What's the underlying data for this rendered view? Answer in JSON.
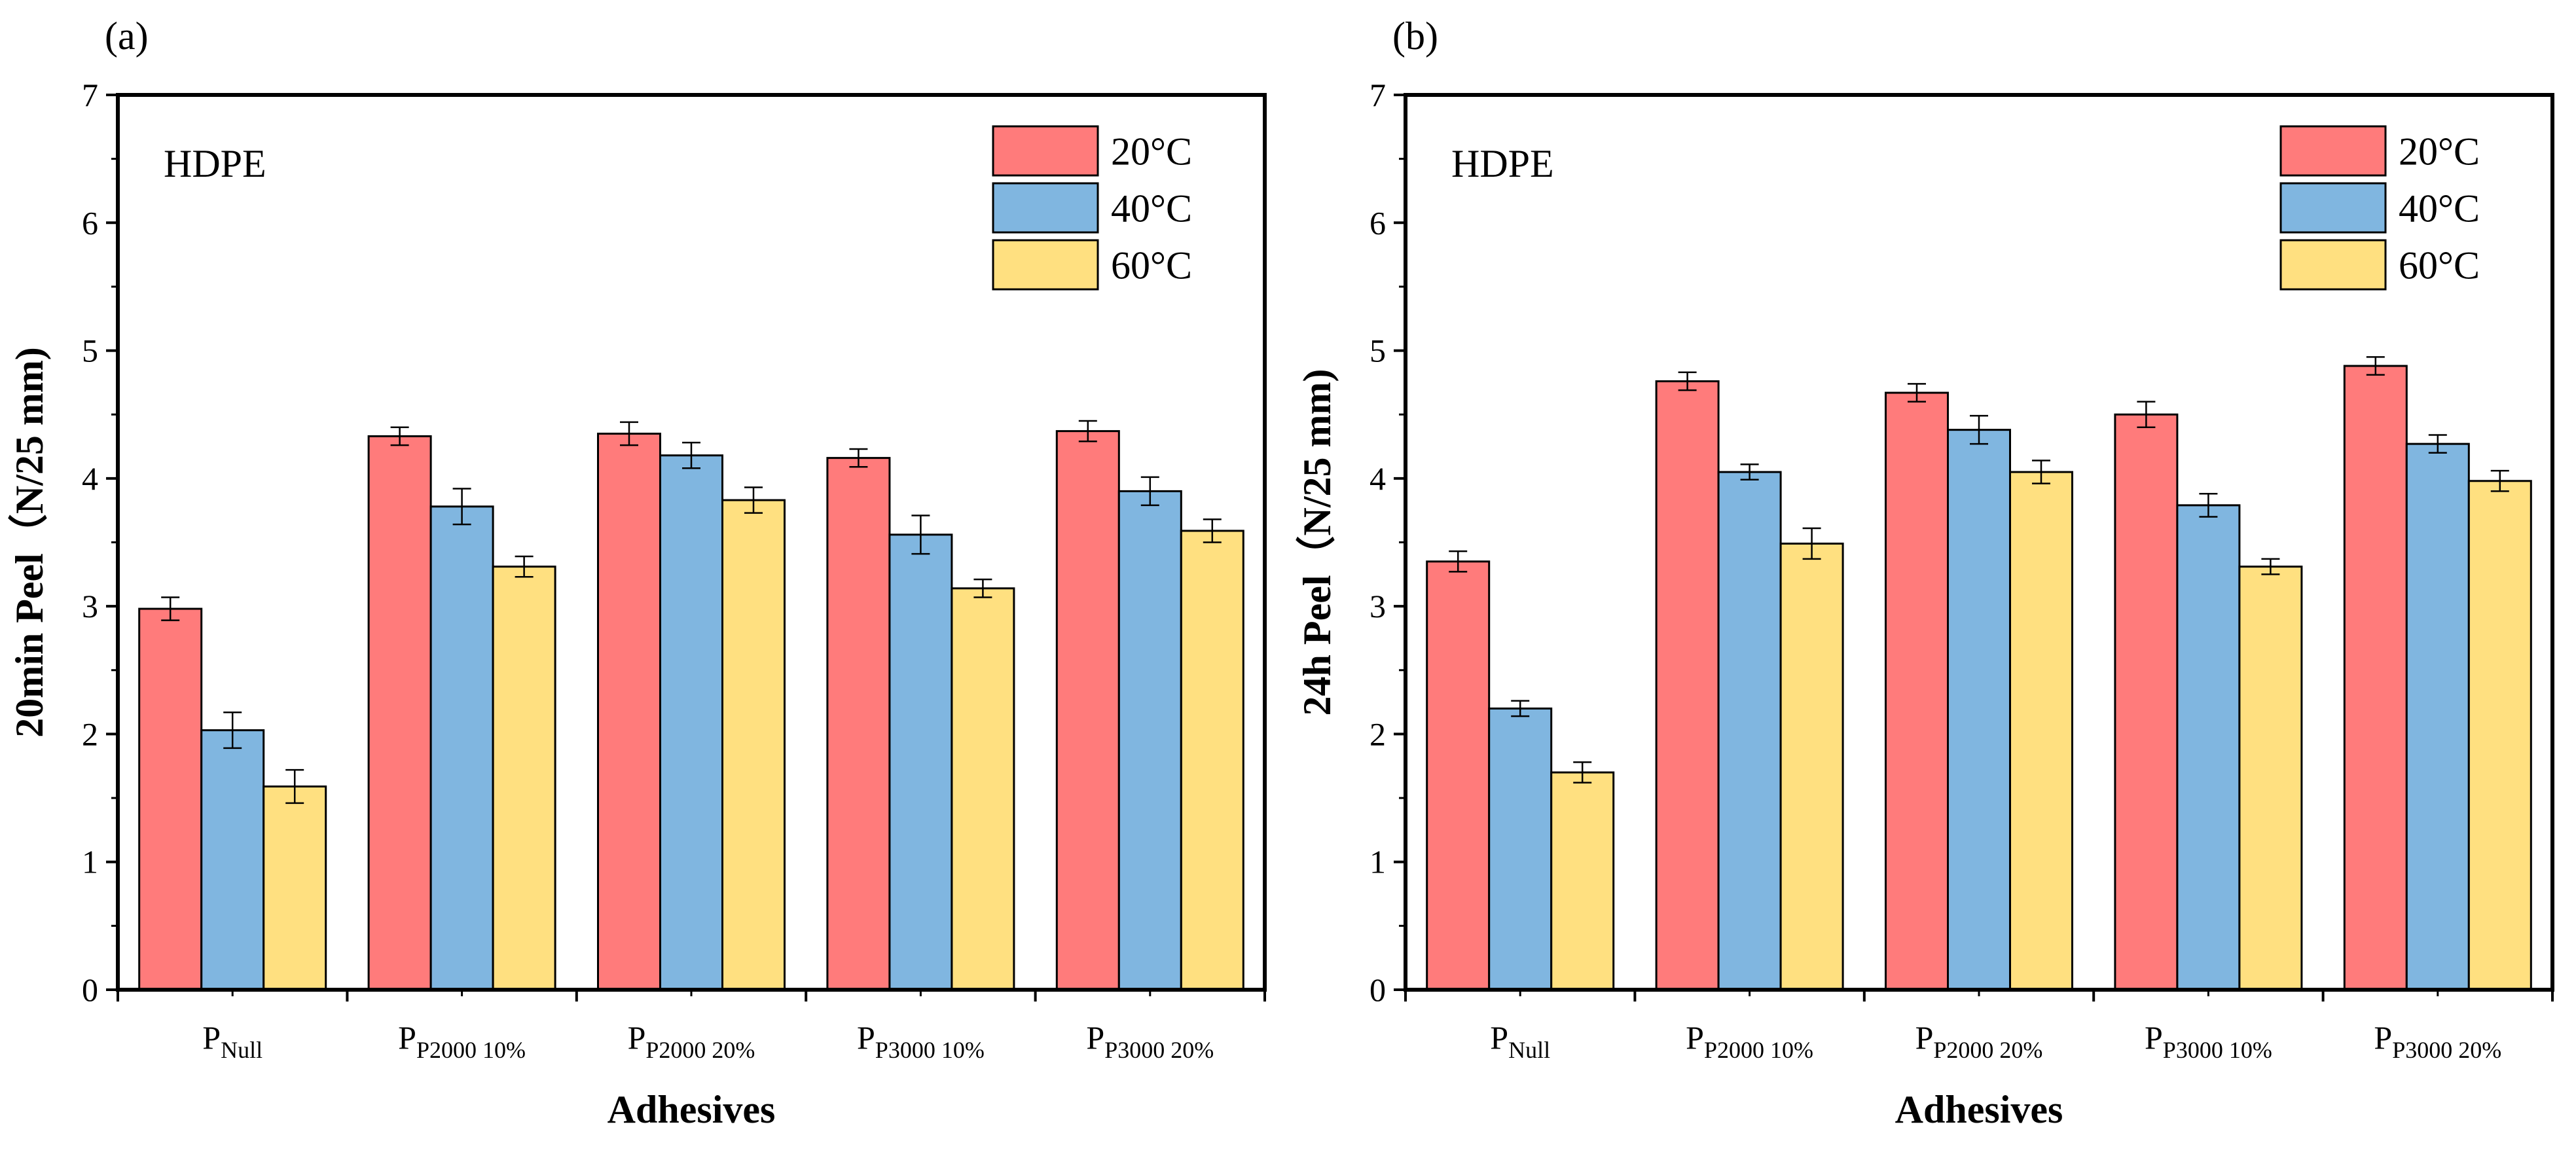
{
  "chart_data": [
    {
      "type": "bar",
      "panel_label": "(a)",
      "annotation": "HDPE",
      "xlabel": "Adhesives",
      "ylabel": "20min Peel（N/25 mm)",
      "ylim": [
        0,
        7
      ],
      "yticks": [
        "0",
        "1",
        "2",
        "3",
        "4",
        "5",
        "6",
        "7"
      ],
      "categories": [
        {
          "base": "P",
          "sub": "Null"
        },
        {
          "base": "P",
          "sub": "P2000 10%"
        },
        {
          "base": "P",
          "sub": "P2000 20%"
        },
        {
          "base": "P",
          "sub": "P3000 10%"
        },
        {
          "base": "P",
          "sub": "P3000 20%"
        }
      ],
      "legend_position": "top-right",
      "series": [
        {
          "name": "20°C",
          "color": "#FF7B7B",
          "values": [
            2.98,
            4.33,
            4.35,
            4.16,
            4.37
          ],
          "errors": [
            0.09,
            0.07,
            0.09,
            0.07,
            0.08
          ]
        },
        {
          "name": "40°C",
          "color": "#80B6E0",
          "values": [
            2.03,
            3.78,
            4.18,
            3.56,
            3.9
          ],
          "errors": [
            0.14,
            0.14,
            0.1,
            0.15,
            0.11
          ]
        },
        {
          "name": "60°C",
          "color": "#FFE080",
          "values": [
            1.59,
            3.31,
            3.83,
            3.14,
            3.59
          ],
          "errors": [
            0.13,
            0.08,
            0.1,
            0.07,
            0.09
          ]
        }
      ]
    },
    {
      "type": "bar",
      "panel_label": "(b)",
      "annotation": "HDPE",
      "xlabel": "Adhesives",
      "ylabel": "24h Peel（N/25 mm)",
      "ylim": [
        0,
        7
      ],
      "yticks": [
        "0",
        "1",
        "2",
        "3",
        "4",
        "5",
        "6",
        "7"
      ],
      "categories": [
        {
          "base": "P",
          "sub": "Null"
        },
        {
          "base": "P",
          "sub": "P2000 10%"
        },
        {
          "base": "P",
          "sub": "P2000 20%"
        },
        {
          "base": "P",
          "sub": "P3000 10%"
        },
        {
          "base": "P",
          "sub": "P3000 20%"
        }
      ],
      "legend_position": "top-right",
      "series": [
        {
          "name": "20°C",
          "color": "#FF7B7B",
          "values": [
            3.35,
            4.76,
            4.67,
            4.5,
            4.88
          ],
          "errors": [
            0.08,
            0.07,
            0.07,
            0.1,
            0.07
          ]
        },
        {
          "name": "40°C",
          "color": "#80B6E0",
          "values": [
            2.2,
            4.05,
            4.38,
            3.79,
            4.27
          ],
          "errors": [
            0.06,
            0.06,
            0.11,
            0.09,
            0.07
          ]
        },
        {
          "name": "60°C",
          "color": "#FFE080",
          "values": [
            1.7,
            3.49,
            4.05,
            3.31,
            3.98
          ],
          "errors": [
            0.08,
            0.12,
            0.09,
            0.06,
            0.08
          ]
        }
      ]
    }
  ]
}
